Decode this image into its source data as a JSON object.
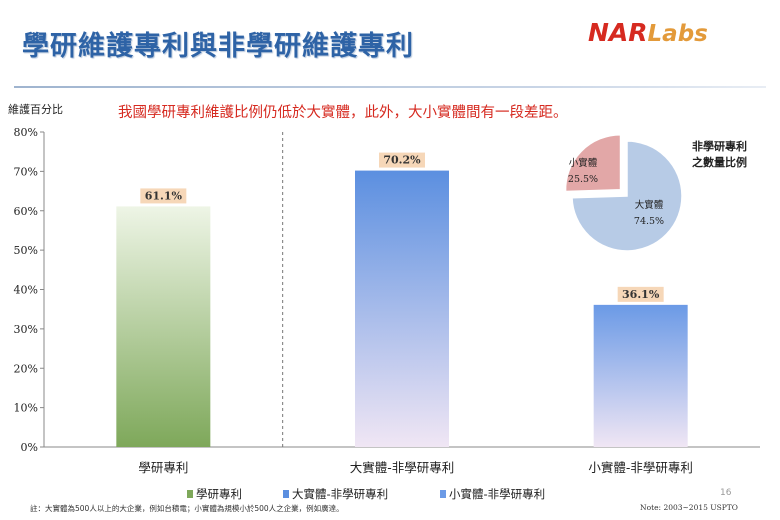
{
  "slide": {
    "title": "學研維護專利與非學研維護專利",
    "logo_main": "NAR",
    "logo_suffix": "Labs",
    "subtitle": "我國學研專利維護比例仍低於大實體，此外，大小實體間有一段差距。",
    "footnote": "註：大實體為500人以上的大企業，例如台積電；小實體為規模小於500人之企業，例如廣達。",
    "note": "Note: 2003~2015 USPTO",
    "page_number": "16"
  },
  "chart_data": [
    {
      "type": "bar",
      "ylabel": "維護百分比",
      "ylim": [
        0,
        80
      ],
      "yticks": [
        "0%",
        "10%",
        "20%",
        "30%",
        "40%",
        "50%",
        "60%",
        "70%",
        "80%"
      ],
      "categories": [
        "學研專利",
        "大實體-非學研專利",
        "小實體-非學研專利"
      ],
      "values": [
        61.1,
        70.2,
        36.1
      ],
      "data_labels": [
        "61.1%",
        "70.2%",
        "36.1%"
      ],
      "legend": [
        "學研專利",
        "大實體-非學研專利",
        "小實體-非學研專利"
      ],
      "legend_position": "bottom",
      "colors": [
        "#7ea85a",
        "#5b8fe0",
        "#6b9ae6"
      ],
      "fade_color": "#f0e6f4",
      "label_bg": "#f6d7b8",
      "grid": false
    },
    {
      "type": "pie",
      "title": "非學研專利之數量比例",
      "labels": [
        "大實體",
        "小實體"
      ],
      "values": [
        74.5,
        25.5
      ],
      "value_labels": [
        "74.5%",
        "25.5%"
      ],
      "colors": [
        "#b7cbe6",
        "#e2a7a7"
      ],
      "exploded": "小實體"
    }
  ]
}
